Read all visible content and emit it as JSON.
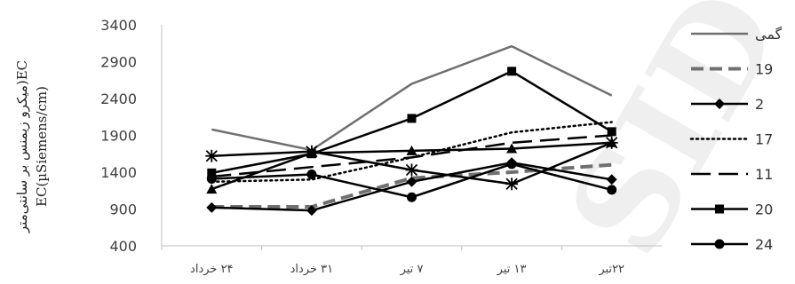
{
  "chart_data": {
    "type": "line",
    "title": "",
    "ylabel_lines": [
      "میکرو زیمنس بر سانتی‌متر)EC",
      "EC(µSiemens/cm)"
    ],
    "ylim": [
      400,
      3400
    ],
    "yticks": [
      400,
      900,
      1400,
      1900,
      2400,
      2900,
      3400
    ],
    "categories": [
      "۲۴ خرداد",
      "۳۱ خرداد",
      "۷ تیر",
      "۱۳ تیر",
      "۲۲تبر"
    ],
    "grid": "none",
    "legend_position": "right",
    "series": [
      {
        "name": "گمی",
        "values": [
          1980,
          1700,
          2600,
          3110,
          2440
        ],
        "color": "#707070",
        "style": "solid",
        "marker": "none"
      },
      {
        "name": "19",
        "values": [
          930,
          930,
          1320,
          1400,
          1500
        ],
        "color": "#707070",
        "style": "dash-thick",
        "marker": "none"
      },
      {
        "name": "2",
        "values": [
          920,
          880,
          1270,
          1530,
          1300
        ],
        "color": "#000000",
        "style": "solid",
        "marker": "diamond"
      },
      {
        "name": "17",
        "values": [
          1270,
          1300,
          1600,
          1940,
          2080
        ],
        "color": "#000000",
        "style": "dot",
        "marker": "none"
      },
      {
        "name": "11",
        "values": [
          1340,
          1470,
          1600,
          1800,
          1900
        ],
        "color": "#000000",
        "style": "longdash",
        "marker": "none"
      },
      {
        "name": "20",
        "values": [
          1390,
          1650,
          2130,
          2770,
          1950
        ],
        "color": "#000000",
        "style": "solid",
        "marker": "square"
      },
      {
        "name": "24",
        "values": [
          1310,
          1370,
          1060,
          1510,
          1160
        ],
        "color": "#000000",
        "style": "solid",
        "marker": "circle"
      },
      {
        "name": "",
        "values": [
          1620,
          1680,
          1430,
          1240,
          1800
        ],
        "color": "#000000",
        "style": "solid",
        "marker": "asterisk"
      },
      {
        "name": "",
        "values": [
          1170,
          1660,
          1690,
          1720,
          1800
        ],
        "color": "#000000",
        "style": "solid",
        "marker": "triangle"
      }
    ]
  },
  "watermark": "SID"
}
